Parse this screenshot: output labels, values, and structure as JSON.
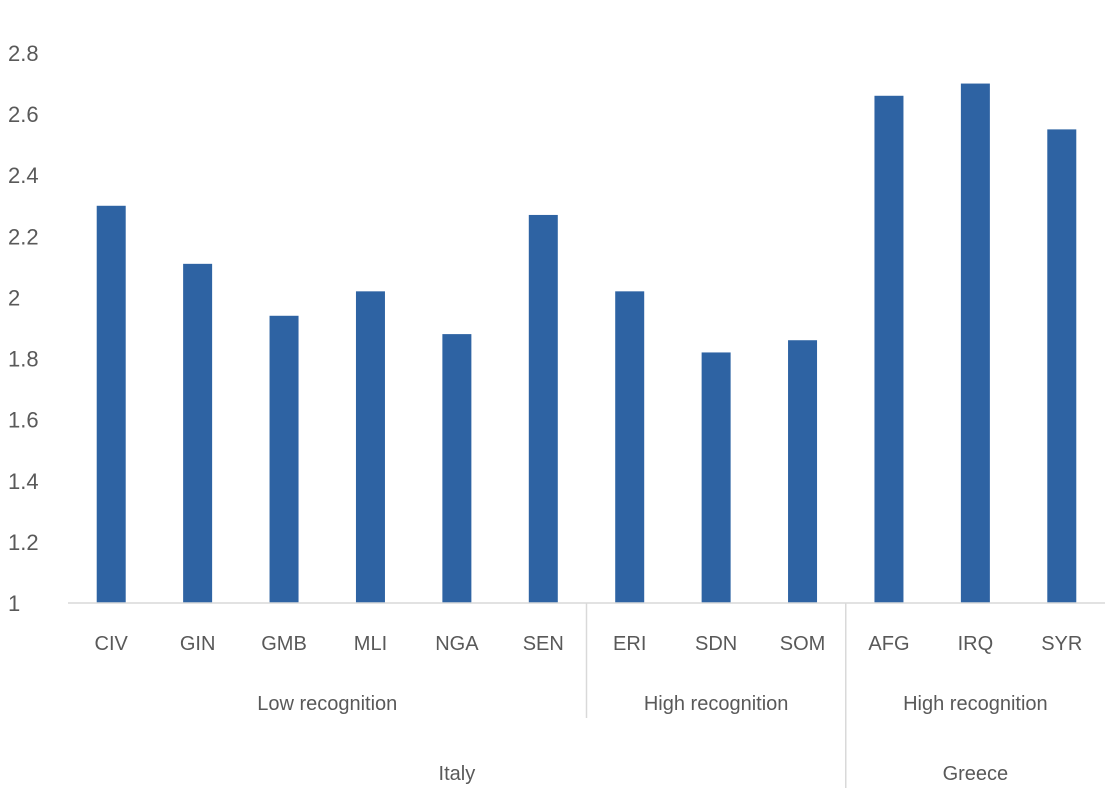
{
  "chart_data": {
    "type": "bar",
    "title": "",
    "xlabel": "",
    "ylabel": "",
    "ylim": [
      1,
      2.8
    ],
    "yticks": [
      "1",
      "1.2",
      "1.4",
      "1.6",
      "1.8",
      "2",
      "2.2",
      "2.4",
      "2.6",
      "2.8"
    ],
    "grid": false,
    "legend": "none",
    "bar_color": "#2e63a3",
    "categories": [
      "CIV",
      "GIN",
      "GMB",
      "MLI",
      "NGA",
      "SEN",
      "ERI",
      "SDN",
      "SOM",
      "AFG",
      "IRQ",
      "SYR"
    ],
    "values": [
      2.3,
      2.11,
      1.94,
      2.02,
      1.88,
      2.27,
      2.02,
      1.82,
      1.86,
      2.66,
      2.7,
      2.55
    ],
    "subgroups": [
      {
        "label": "Low recognition",
        "start": 0,
        "end": 5
      },
      {
        "label": "High recognition",
        "start": 6,
        "end": 8
      },
      {
        "label": "High recognition",
        "start": 9,
        "end": 11
      }
    ],
    "groups": [
      {
        "label": "Italy",
        "start": 0,
        "end": 8
      },
      {
        "label": "Greece",
        "start": 9,
        "end": 11
      }
    ]
  }
}
